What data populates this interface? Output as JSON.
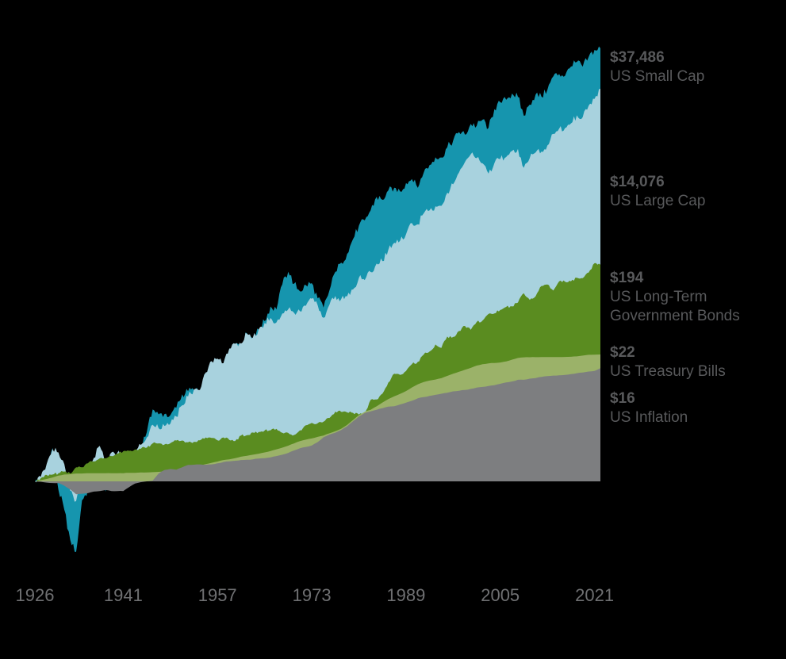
{
  "colors": {
    "background": "#000000",
    "axis_text": "#6f7072",
    "side_label_text": "#58595b"
  },
  "chart_data": {
    "type": "area",
    "subtype": "overlapping-log-growth-of-dollar",
    "scale": "log",
    "baseline_value": 1,
    "x_start_year": 1926,
    "x_end_year": 2021,
    "x_ticks": [
      "1926",
      "1941",
      "1957",
      "1973",
      "1989",
      "2005",
      "2021"
    ],
    "legend_position": "right",
    "grid": false,
    "series": [
      {
        "id": "us-small-cap",
        "name": "US Small Cap",
        "final_value_label": "$37,486",
        "final_value": 37486,
        "color": "#1695ae",
        "jitter": 0.042,
        "values": [
          1.0,
          1.0,
          1.35,
          2.25,
          0.81,
          0.5,
          0.24,
          0.18,
          0.63,
          0.8,
          1.12,
          1.84,
          0.78,
          1.03,
          1.03,
          0.98,
          0.89,
          1.28,
          2.42,
          3.31,
          5.76,
          5.1,
          5.14,
          5.0,
          5.99,
          8.31,
          8.96,
          9.24,
          8.64,
          13.9,
          16.8,
          17.5,
          14.9,
          24.7,
          28.7,
          27.8,
          36.7,
          32.4,
          40.0,
          49.3,
          70.2,
          65.3,
          119.8,
          163.7,
          122.4,
          101.5,
          118.3,
          123.8,
          85.6,
          68.4,
          104.1,
          163.3,
          204.4,
          252.1,
          361.7,
          501.7,
          570.8,
          729.4,
          1010,
          940,
          1183,
          1264,
          1154,
          1413,
          1561,
          1258,
          1820,
          2193,
          2643,
          2631,
          3374,
          3960,
          4889,
          4586,
          5951,
          5682,
          6607,
          5392,
          8530,
          10104,
          10697,
          12479,
          11502,
          7271,
          9530,
          12179,
          11562,
          13693,
          18906,
          20078,
          19196,
          24041,
          26896,
          23937,
          30277,
          36067,
          37486
        ]
      },
      {
        "id": "us-large-cap",
        "name": "US Large Cap",
        "final_value_label": "$14,076",
        "final_value": 14076,
        "color": "#a8d2de",
        "jitter": 0.036,
        "values": [
          1.0,
          1.12,
          1.53,
          2.2,
          2.02,
          1.52,
          0.8,
          0.62,
          1.21,
          1.2,
          1.77,
          2.37,
          1.54,
          2.02,
          2.01,
          1.81,
          1.6,
          1.93,
          2.43,
          2.91,
          3.96,
          3.64,
          3.85,
          4.06,
          4.83,
          6.36,
          7.88,
          9.33,
          9.24,
          14.1,
          18.6,
          19.8,
          17.7,
          25.3,
          28.3,
          28.5,
          36.2,
          33.0,
          40.5,
          47.2,
          53.1,
          47.7,
          59.2,
          65.7,
          60.2,
          62.6,
          71.5,
          85.1,
          72.6,
          53.4,
          73.3,
          90.8,
          84.3,
          89.8,
          106.3,
          140.9,
          133.9,
          162.7,
          199.4,
          211.9,
          279.1,
          331.2,
          348.6,
          406.5,
          535.1,
          518.5,
          676.4,
          727.9,
          801.3,
          811.8,
          1117,
          1373,
          1832,
          2355,
          2850,
          2591,
          2283,
          1779,
          2289,
          2538,
          2662,
          3082,
          3251,
          2049,
          2591,
          2981,
          3043,
          3531,
          4673,
          5313,
          5386,
          6031,
          7348,
          7026,
          9239,
          10937,
          14076
        ]
      },
      {
        "id": "us-long-term-government-bonds",
        "name": "US Long-Term Government Bonds",
        "final_value_label": "$194",
        "final_value": 194,
        "color": "#5a8c20",
        "jitter": 0.014,
        "values": [
          1.0,
          1.08,
          1.17,
          1.18,
          1.22,
          1.27,
          1.21,
          1.41,
          1.41,
          1.55,
          1.63,
          1.75,
          1.75,
          1.85,
          1.96,
          2.08,
          2.1,
          2.17,
          2.21,
          2.27,
          2.52,
          2.52,
          2.45,
          2.53,
          2.7,
          2.7,
          2.59,
          2.62,
          2.71,
          2.91,
          2.87,
          2.71,
          2.91,
          2.74,
          2.67,
          3.04,
          3.07,
          3.28,
          3.32,
          3.44,
          3.46,
          3.59,
          3.26,
          3.25,
          3.09,
          3.46,
          3.92,
          4.14,
          4.1,
          4.27,
          4.67,
          5.45,
          5.42,
          5.35,
          5.29,
          5.08,
          5.17,
          7.26,
          7.31,
          8.44,
          11.05,
          13.72,
          13.34,
          14.62,
          17.25,
          18.32,
          21.84,
          23.55,
          27.88,
          25.69,
          33.8,
          33.51,
          38.75,
          43.78,
          39.86,
          48.23,
          50.01,
          58.63,
          59.44,
          64.54,
          69.62,
          70.36,
          77.26,
          97.22,
          82.59,
          90.09,
          115.7,
          119.8,
          103.5,
          129.7,
          128.4,
          129.6,
          141.3,
          140.1,
          160.4,
          201.2,
          194
        ]
      },
      {
        "id": "us-treasury-bills",
        "name": "US Treasury Bills",
        "final_value_label": "$22",
        "final_value": 22,
        "color": "#9bb269",
        "jitter": 0.0015,
        "values": [
          1.0,
          1.03,
          1.06,
          1.1,
          1.15,
          1.18,
          1.19,
          1.21,
          1.21,
          1.22,
          1.22,
          1.22,
          1.22,
          1.22,
          1.22,
          1.22,
          1.23,
          1.23,
          1.24,
          1.24,
          1.25,
          1.26,
          1.27,
          1.29,
          1.31,
          1.34,
          1.38,
          1.43,
          1.48,
          1.52,
          1.57,
          1.62,
          1.68,
          1.71,
          1.76,
          1.82,
          1.86,
          1.91,
          1.96,
          2.02,
          2.09,
          2.18,
          2.27,
          2.38,
          2.52,
          2.66,
          2.76,
          2.84,
          2.95,
          3.05,
          3.22,
          3.38,
          3.6,
          3.94,
          4.45,
          5.0,
          5.45,
          5.7,
          6.2,
          6.8,
          7.4,
          7.9,
          8.4,
          9.0,
          9.8,
          10.6,
          11.2,
          11.6,
          11.9,
          12.3,
          13.0,
          13.7,
          14.4,
          15.1,
          15.8,
          16.7,
          17.3,
          17.6,
          17.8,
          18.0,
          18.5,
          19.3,
          20.1,
          20.4,
          20.45,
          20.5,
          20.52,
          20.54,
          20.56,
          20.58,
          20.6,
          20.7,
          20.9,
          21.3,
          21.7,
          21.8,
          21.9
        ]
      },
      {
        "id": "us-inflation",
        "name": "US Inflation",
        "final_value_label": "$16",
        "final_value": 16,
        "color": "#7d7e80",
        "jitter": 0.002,
        "values": [
          1.0,
          0.99,
          0.97,
          0.96,
          0.96,
          0.9,
          0.82,
          0.73,
          0.74,
          0.75,
          0.78,
          0.79,
          0.81,
          0.79,
          0.79,
          0.79,
          0.87,
          0.95,
          0.98,
          1.0,
          1.02,
          1.21,
          1.32,
          1.35,
          1.33,
          1.41,
          1.49,
          1.5,
          1.51,
          1.5,
          1.51,
          1.55,
          1.6,
          1.63,
          1.65,
          1.68,
          1.69,
          1.71,
          1.74,
          1.76,
          1.79,
          1.85,
          1.91,
          2.0,
          2.12,
          2.24,
          2.31,
          2.39,
          2.6,
          2.92,
          3.12,
          3.27,
          3.49,
          3.81,
          4.31,
          4.85,
          5.28,
          5.49,
          5.7,
          5.92,
          6.15,
          6.22,
          6.49,
          6.78,
          7.09,
          7.53,
          7.76,
          7.98,
          8.2,
          8.42,
          8.64,
          8.92,
          9.07,
          9.22,
          9.47,
          9.79,
          9.94,
          10.18,
          10.37,
          10.71,
          11.07,
          11.35,
          11.82,
          11.83,
          12.15,
          12.33,
          12.7,
          12.92,
          13.11,
          13.21,
          13.31,
          13.58,
          13.87,
          14.13,
          14.45,
          14.65,
          15.68
        ]
      }
    ]
  }
}
